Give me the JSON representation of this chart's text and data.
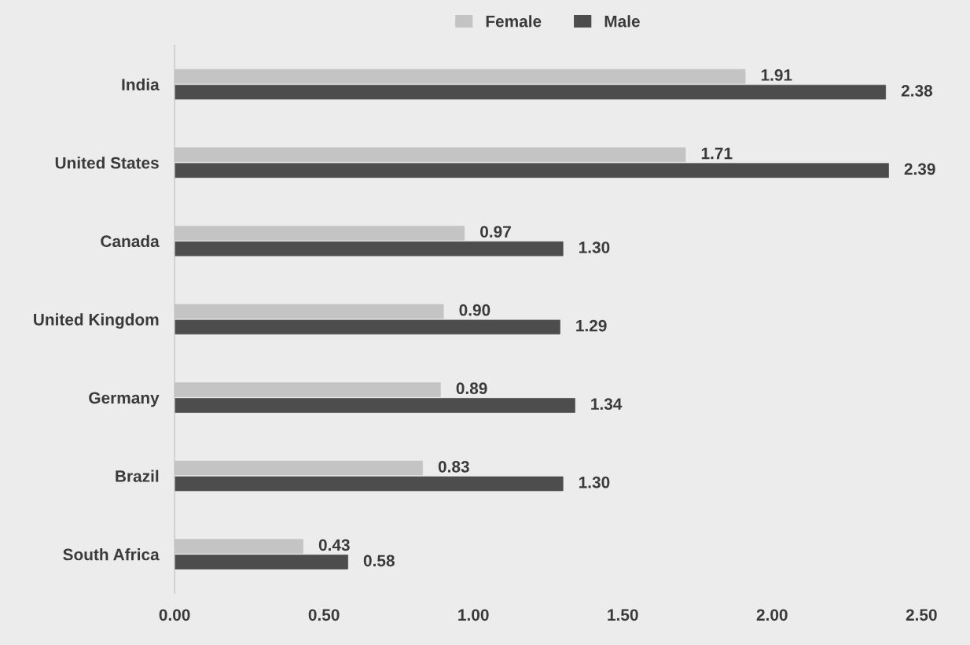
{
  "chart_data": {
    "type": "bar",
    "orientation": "horizontal",
    "categories": [
      "India",
      "United States",
      "Canada",
      "United Kingdom",
      "Germany",
      "Brazil",
      "South Africa"
    ],
    "series": [
      {
        "name": "Female",
        "color": "#c4c4c4",
        "values": [
          1.91,
          1.71,
          0.97,
          0.9,
          0.89,
          0.83,
          0.43
        ],
        "value_labels": [
          "1.91",
          "1.71",
          "0.97",
          "0.90",
          "0.89",
          "0.83",
          "0.43"
        ]
      },
      {
        "name": "Male",
        "color": "#4d4d4d",
        "values": [
          2.38,
          2.39,
          1.3,
          1.29,
          1.34,
          1.3,
          0.58
        ],
        "value_labels": [
          "2.38",
          "2.39",
          "1.30",
          "1.29",
          "1.34",
          "1.30",
          "0.58"
        ]
      }
    ],
    "xlim": [
      0,
      2.5
    ],
    "xticks": [
      {
        "value": 0,
        "label": "0.00"
      },
      {
        "value": 0.5,
        "label": "0.50"
      },
      {
        "value": 1,
        "label": "1.00"
      },
      {
        "value": 1.5,
        "label": "1.50"
      },
      {
        "value": 2,
        "label": "2.00"
      },
      {
        "value": 2.5,
        "label": "2.50"
      }
    ],
    "grid": false,
    "legend": "top"
  }
}
